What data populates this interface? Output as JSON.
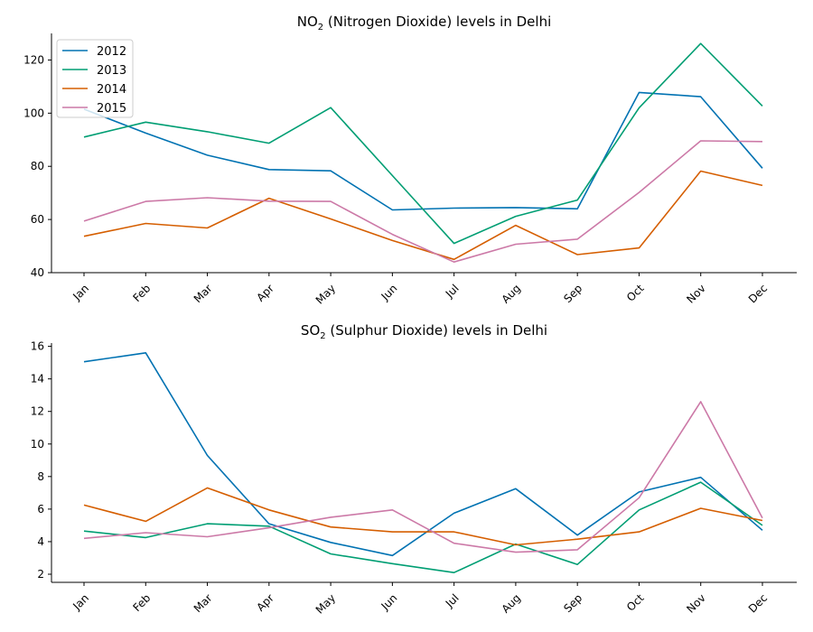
{
  "chart_data": [
    {
      "type": "line",
      "title_main": "NO",
      "title_sub": "2",
      "title_rest": " (Nitrogen Dioxide) levels in Delhi",
      "categories": [
        "Jan",
        "Feb",
        "Mar",
        "Apr",
        "May",
        "Jun",
        "Jul",
        "Aug",
        "Sep",
        "Oct",
        "Nov",
        "Dec"
      ],
      "ylim": [
        40,
        130
      ],
      "yticks": [
        40,
        60,
        80,
        100,
        120
      ],
      "legend_position": "upper-left",
      "grid": false,
      "series": [
        {
          "name": "2012",
          "color": "#0072b2",
          "values": [
            101.5,
            92.5,
            84.2,
            78.8,
            78.3,
            63.6,
            64.3,
            64.5,
            64.0,
            107.8,
            106.2,
            79.3
          ]
        },
        {
          "name": "2013",
          "color": "#009e73",
          "values": [
            91.0,
            96.6,
            93.0,
            88.7,
            102.1,
            76.5,
            51.0,
            61.2,
            67.3,
            102.0,
            126.2,
            102.7
          ]
        },
        {
          "name": "2014",
          "color": "#d55e00",
          "values": [
            53.7,
            58.5,
            56.8,
            68.0,
            60.2,
            52.1,
            45.0,
            57.8,
            46.8,
            49.3,
            78.2,
            72.8
          ]
        },
        {
          "name": "2015",
          "color": "#cc79a7",
          "values": [
            59.4,
            66.8,
            68.2,
            66.9,
            66.8,
            54.4,
            44.0,
            50.7,
            52.6,
            70.2,
            89.6,
            89.3
          ]
        }
      ]
    },
    {
      "type": "line",
      "title_main": "SO",
      "title_sub": "2",
      "title_rest": " (Sulphur Dioxide) levels in Delhi",
      "categories": [
        "Jan",
        "Feb",
        "Mar",
        "Apr",
        "May",
        "Jun",
        "Jul",
        "Aug",
        "Sep",
        "Oct",
        "Nov",
        "Dec"
      ],
      "ylim": [
        1.5,
        16.2
      ],
      "yticks": [
        2,
        4,
        6,
        8,
        10,
        12,
        14,
        16
      ],
      "grid": false,
      "series": [
        {
          "name": "2012",
          "color": "#0072b2",
          "values": [
            15.05,
            15.6,
            9.3,
            5.1,
            3.95,
            3.15,
            5.75,
            7.25,
            4.4,
            7.05,
            7.95,
            4.7
          ]
        },
        {
          "name": "2013",
          "color": "#009e73",
          "values": [
            4.65,
            4.25,
            5.1,
            4.95,
            3.25,
            2.65,
            2.1,
            3.85,
            2.6,
            5.95,
            7.65,
            5.0
          ]
        },
        {
          "name": "2014",
          "color": "#d55e00",
          "values": [
            6.25,
            5.25,
            7.3,
            5.95,
            4.9,
            4.6,
            4.6,
            3.8,
            4.15,
            4.6,
            6.05,
            5.3
          ]
        },
        {
          "name": "2015",
          "color": "#cc79a7",
          "values": [
            4.2,
            4.55,
            4.3,
            4.85,
            5.5,
            5.95,
            3.9,
            3.35,
            3.5,
            6.7,
            12.6,
            5.45
          ]
        }
      ]
    }
  ]
}
